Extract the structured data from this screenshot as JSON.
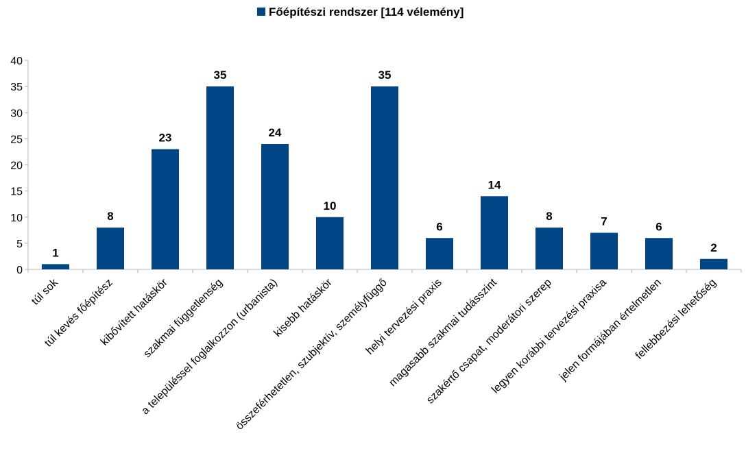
{
  "chart_data": {
    "type": "bar",
    "categories": [
      "túl sok",
      "túl kevés főépítész",
      "kibővített hatáskör",
      "szakmai függetlenség",
      "a településsel foglalkozzon (urbanista)",
      "kisebb hatáskör",
      "összeférhetetlen, szubjektív, személyfüggő",
      "helyi tervezési praxis",
      "magasabb szakmai tudásszint",
      "szakértő csapat, moderátori szerep",
      "legyen korábbi tervezési praxisa",
      "jelen formájában értelmetlen",
      "fellebbezési lehetőség"
    ],
    "series": [
      {
        "name": "Főépítészi rendszer [114 vélemény]",
        "color": "#004586",
        "values": [
          1,
          8,
          23,
          35,
          24,
          10,
          35,
          6,
          14,
          8,
          7,
          6,
          2
        ]
      }
    ],
    "ylim": [
      0,
      40
    ],
    "yticks": [
      0,
      5,
      10,
      15,
      20,
      25,
      30,
      35,
      40
    ],
    "grid": false,
    "legend": "top-center",
    "title": "",
    "xlabel": "",
    "ylabel": ""
  }
}
